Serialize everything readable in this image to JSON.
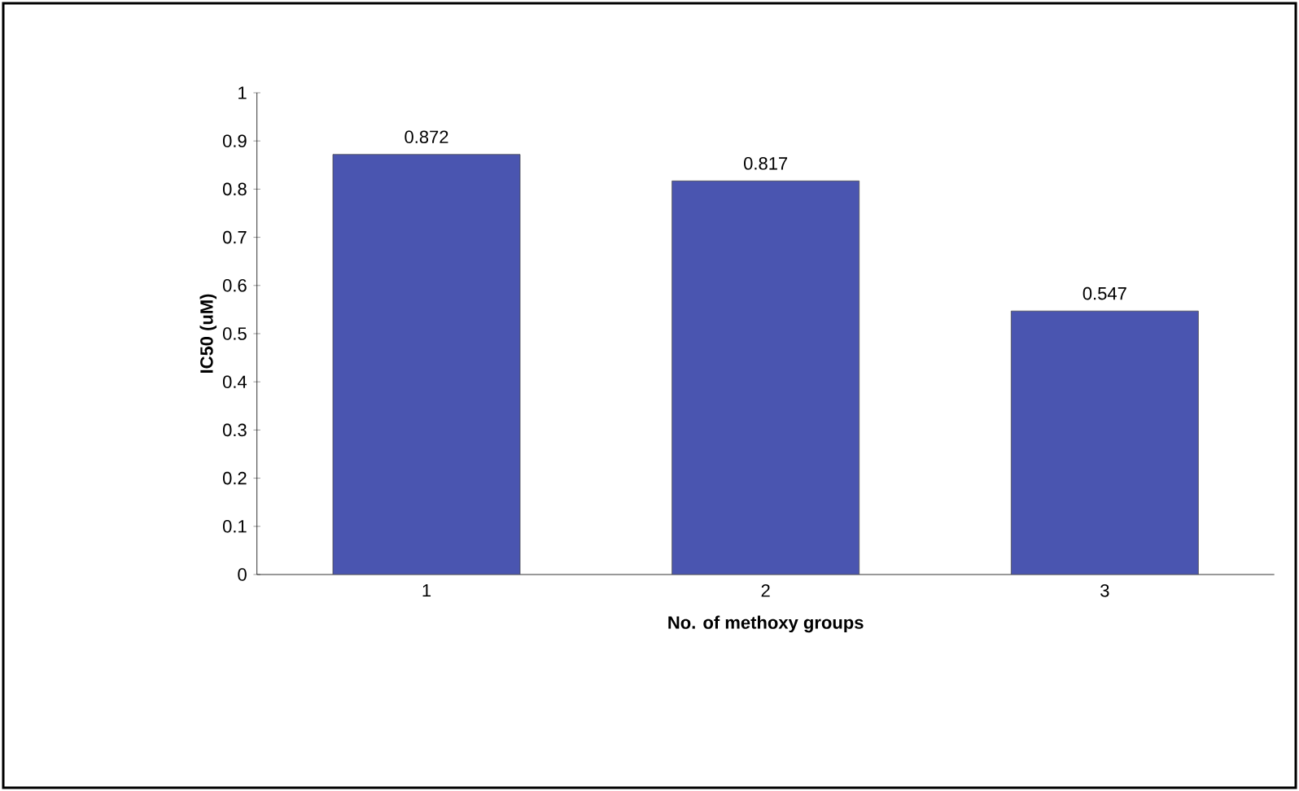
{
  "chart_data": {
    "type": "bar",
    "xlabel": "No. of methoxy groups",
    "ylabel": "IC50 (uM)",
    "categories": [
      "1",
      "2",
      "3"
    ],
    "values": [
      0.872,
      0.817,
      0.547
    ],
    "color": "#4a55b0",
    "data_labels": true,
    "ylim": [
      0,
      1
    ],
    "yticks": [
      0,
      0.1,
      0.2,
      0.3,
      0.4,
      0.5,
      0.6,
      0.7,
      0.8,
      0.9,
      1
    ],
    "grid": false
  }
}
